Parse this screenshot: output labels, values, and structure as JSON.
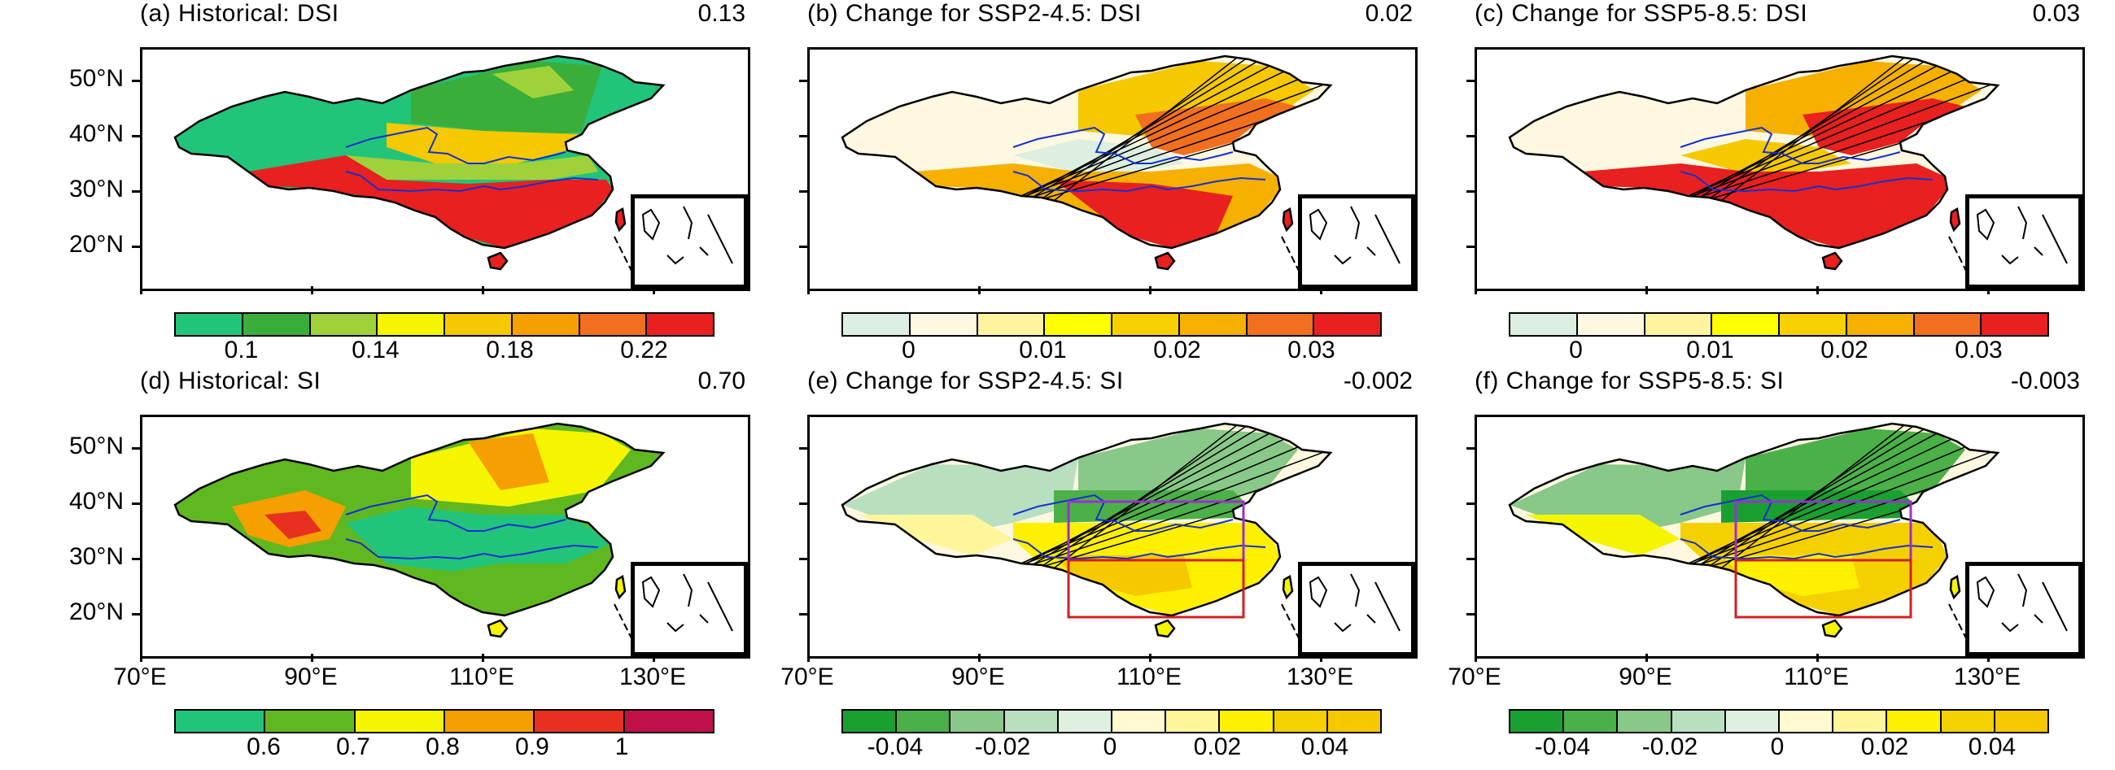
{
  "panels": [
    {
      "title": "(a) Historical: DSI",
      "value": "0.13",
      "cbar": "dsi_hist"
    },
    {
      "title": "(b) Change for SSP2-4.5: DSI",
      "value": "0.02",
      "cbar": "dsi_chg"
    },
    {
      "title": "(c) Change for SSP5-8.5: DSI",
      "value": "0.03",
      "cbar": "dsi_chg"
    },
    {
      "title": "(d) Historical: SI",
      "value": "0.70",
      "cbar": "si_hist"
    },
    {
      "title": "(e) Change for SSP2-4.5: SI",
      "value": "-0.002",
      "cbar": "si_chg"
    },
    {
      "title": "(f) Change for SSP5-8.5: SI",
      "value": "-0.003",
      "cbar": "si_chg"
    }
  ],
  "lat_labels": [
    "50°N",
    "40°N",
    "30°N",
    "20°N"
  ],
  "lon_labels": [
    "70°E",
    "90°E",
    "110°E",
    "130°E"
  ],
  "colorbars": {
    "dsi_hist": {
      "colors": [
        "#22c47a",
        "#3aae3a",
        "#9fd23a",
        "#f5f500",
        "#f5c800",
        "#f5a000",
        "#f07020",
        "#e82020"
      ],
      "labels": [
        "0.1",
        "0.14",
        "0.18",
        "0.22"
      ]
    },
    "dsi_chg": {
      "colors": [
        "#dcefe0",
        "#fff8e0",
        "#fff3a0",
        "#ffff00",
        "#f8d000",
        "#f5b000",
        "#f07020",
        "#e82020"
      ],
      "labels": [
        "0",
        "0.01",
        "0.02",
        "0.03"
      ]
    },
    "si_hist": {
      "colors": [
        "#22c47a",
        "#60b820",
        "#f5f500",
        "#f5a000",
        "#e83020",
        "#c0104a"
      ],
      "labels": [
        "0.6",
        "0.7",
        "0.8",
        "0.9",
        "1"
      ]
    },
    "si_chg": {
      "colors": [
        "#1aa030",
        "#4cb048",
        "#88c888",
        "#b8e0c0",
        "#def0e0",
        "#fffad0",
        "#fff59a",
        "#fff000",
        "#f5d000",
        "#f5c800"
      ],
      "labels": [
        "-0.04",
        "-0.02",
        "0",
        "0.02",
        "0.04"
      ]
    }
  }
}
